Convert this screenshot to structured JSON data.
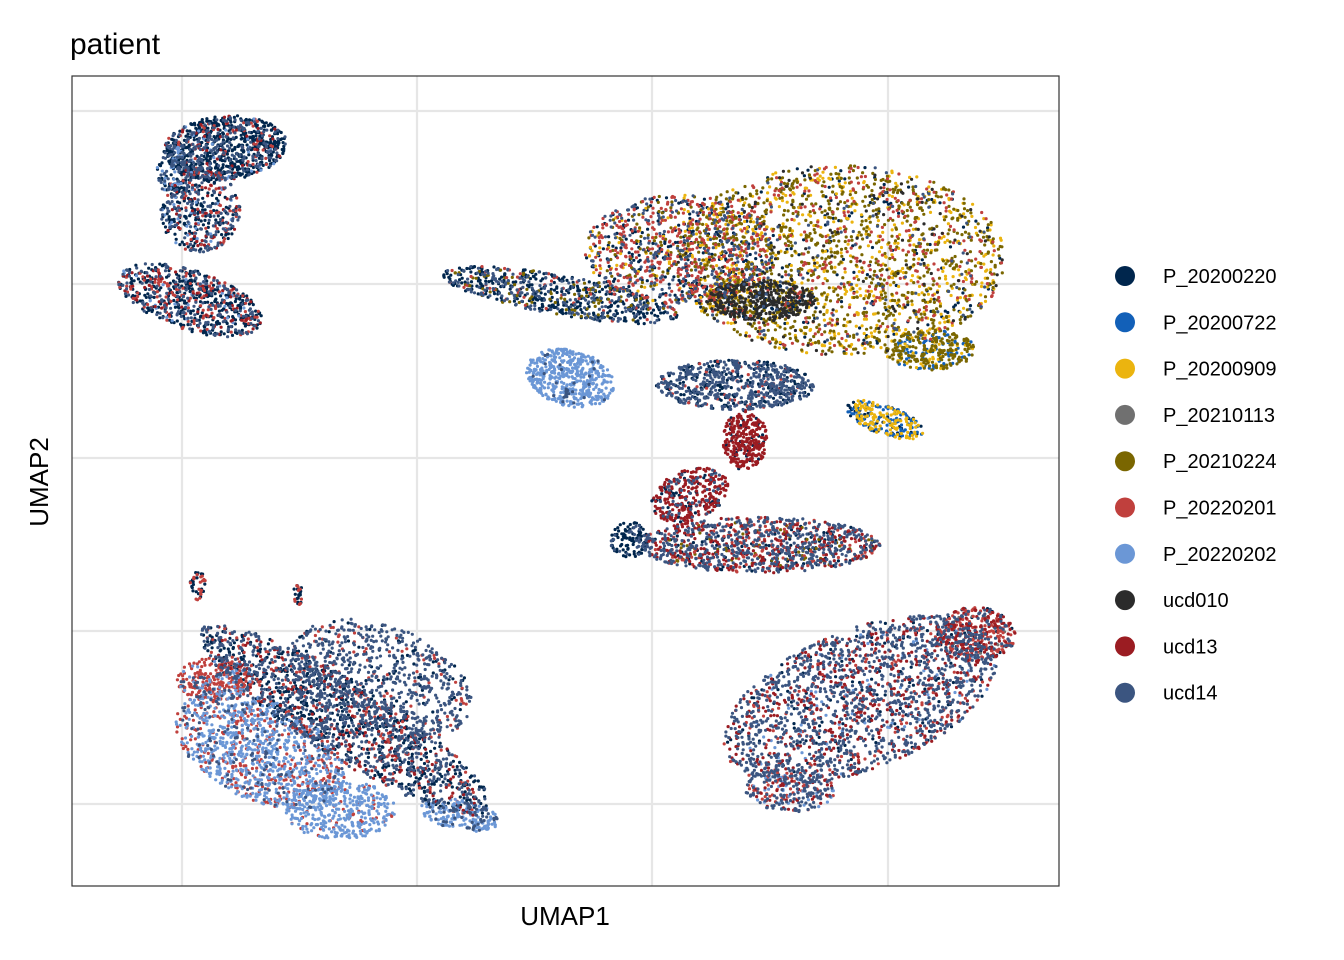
{
  "chart_data": {
    "type": "scatter",
    "title": "patient",
    "xlabel": "UMAP1",
    "ylabel": "UMAP2",
    "axis_ticks_labeled": false,
    "grid": true,
    "legend_position": "right",
    "series": [
      {
        "name": "P_20200220",
        "color": "#00264D"
      },
      {
        "name": "P_20200722",
        "color": "#1260B8"
      },
      {
        "name": "P_20200909",
        "color": "#EBB40F"
      },
      {
        "name": "P_20210113",
        "color": "#707070"
      },
      {
        "name": "P_20210224",
        "color": "#7A6600"
      },
      {
        "name": "P_20220201",
        "color": "#C0403D"
      },
      {
        "name": "P_20220202",
        "color": "#6B97D6"
      },
      {
        "name": "ucd010",
        "color": "#2B2B2B"
      },
      {
        "name": "ucd13",
        "color": "#9B1C22"
      },
      {
        "name": "ucd14",
        "color": "#3B5580"
      }
    ]
  }
}
